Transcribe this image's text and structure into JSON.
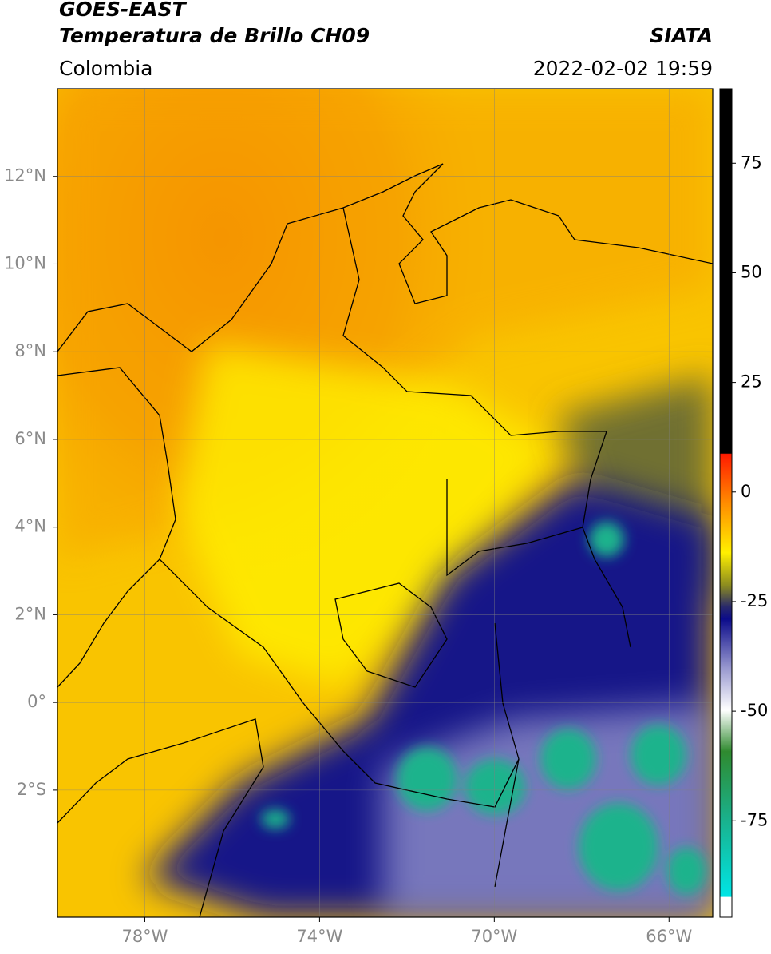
{
  "header": {
    "satellite": "GOES-EAST",
    "product": "Temperatura de Brillo CH09",
    "region": "Colombia",
    "source": "SIATA",
    "datetime": "2022-02-02 19:59"
  },
  "map": {
    "lonlim": [
      -80,
      -65
    ],
    "latlim": [
      -4.9,
      14
    ],
    "lon_ticks": [
      {
        "value": -78,
        "label": "78°W"
      },
      {
        "value": -74,
        "label": "74°W"
      },
      {
        "value": -70,
        "label": "70°W"
      },
      {
        "value": -66,
        "label": "66°W"
      }
    ],
    "lat_ticks": [
      {
        "value": 12,
        "label": "12°N"
      },
      {
        "value": 10,
        "label": "10°N"
      },
      {
        "value": 8,
        "label": "8°N"
      },
      {
        "value": 6,
        "label": "6°N"
      },
      {
        "value": 4,
        "label": "4°N"
      },
      {
        "value": 2,
        "label": "2°N"
      },
      {
        "value": 0,
        "label": "0°"
      },
      {
        "value": -2,
        "label": "2°S"
      }
    ],
    "grid": true
  },
  "colorbar": {
    "lim": [
      -97,
      92
    ],
    "ticks": [
      75,
      50,
      25,
      0,
      -25,
      -50,
      -75
    ]
  }
}
